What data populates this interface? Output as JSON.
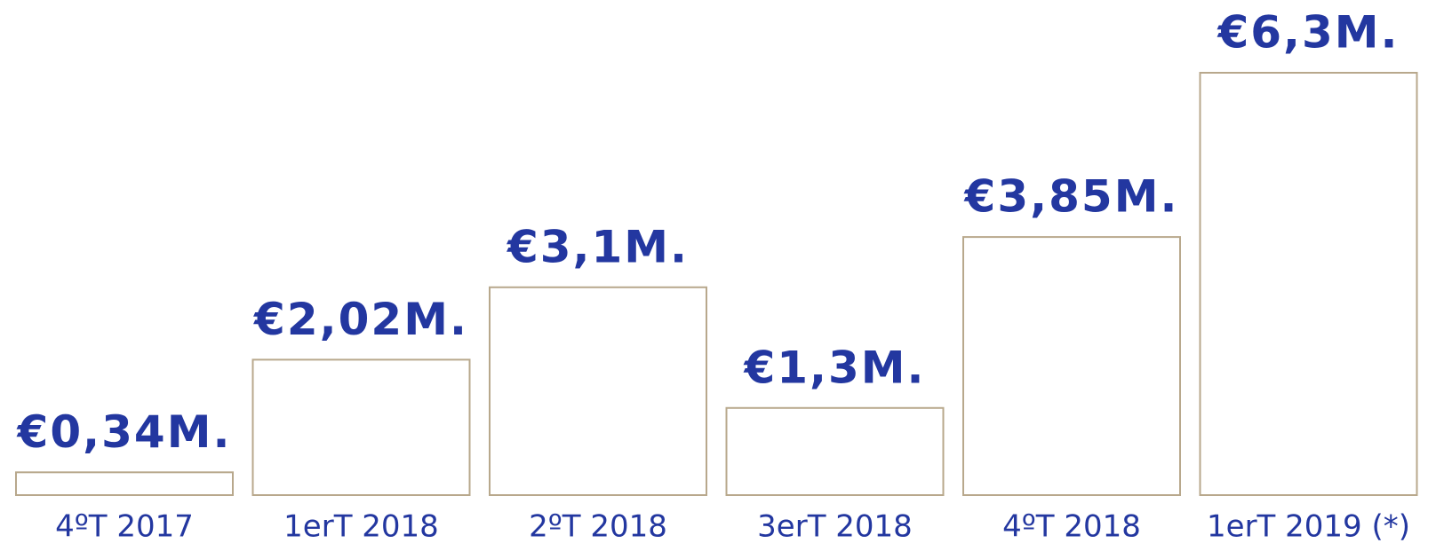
{
  "chart_data": {
    "type": "bar",
    "categories": [
      "4ºT 2017",
      "1erT 2018",
      "2ºT 2018",
      "3erT 2018",
      "4ºT 2018",
      "1erT 2019 (*)"
    ],
    "values": [
      0.34,
      2.02,
      3.1,
      1.3,
      3.85,
      6.3
    ],
    "value_labels": [
      "€0,34M.",
      "€2,02M.",
      "€3,1M.",
      "€1,3M.",
      "€3,85M.",
      "€6,3M."
    ],
    "color": "#ffffff",
    "edge_color": "#b8a88c"
  }
}
